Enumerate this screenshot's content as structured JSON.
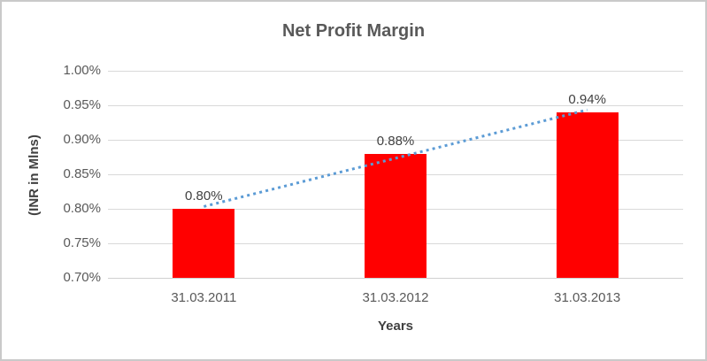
{
  "chart_data": {
    "type": "bar",
    "title": "Net Profit Margin",
    "xlabel": "Years",
    "ylabel": "(INR in Mlns)",
    "categories": [
      "31.03.2011",
      "31.03.2012",
      "31.03.2013"
    ],
    "values": [
      0.8,
      0.88,
      0.94
    ],
    "data_labels": [
      "0.80%",
      "0.88%",
      "0.94%"
    ],
    "ylim": [
      0.7,
      1.0
    ],
    "ytick_step": 0.05,
    "ytick_labels": [
      "1.00%",
      "0.95%",
      "0.90%",
      "0.85%",
      "0.80%",
      "0.75%",
      "0.70%"
    ],
    "grid": true,
    "legend": false,
    "bar_color": "#FF0000",
    "trendline": {
      "type": "linear",
      "style": "dotted",
      "color": "#5B9BD5"
    },
    "colors": {
      "title_text": "#595959",
      "axis_text": "#595959",
      "data_label_text": "#404040",
      "gridline": "#D9D9D9",
      "axis_line": "#D0D0D0",
      "frame_border": "#C9C9C9",
      "background": "#FFFFFF"
    }
  }
}
